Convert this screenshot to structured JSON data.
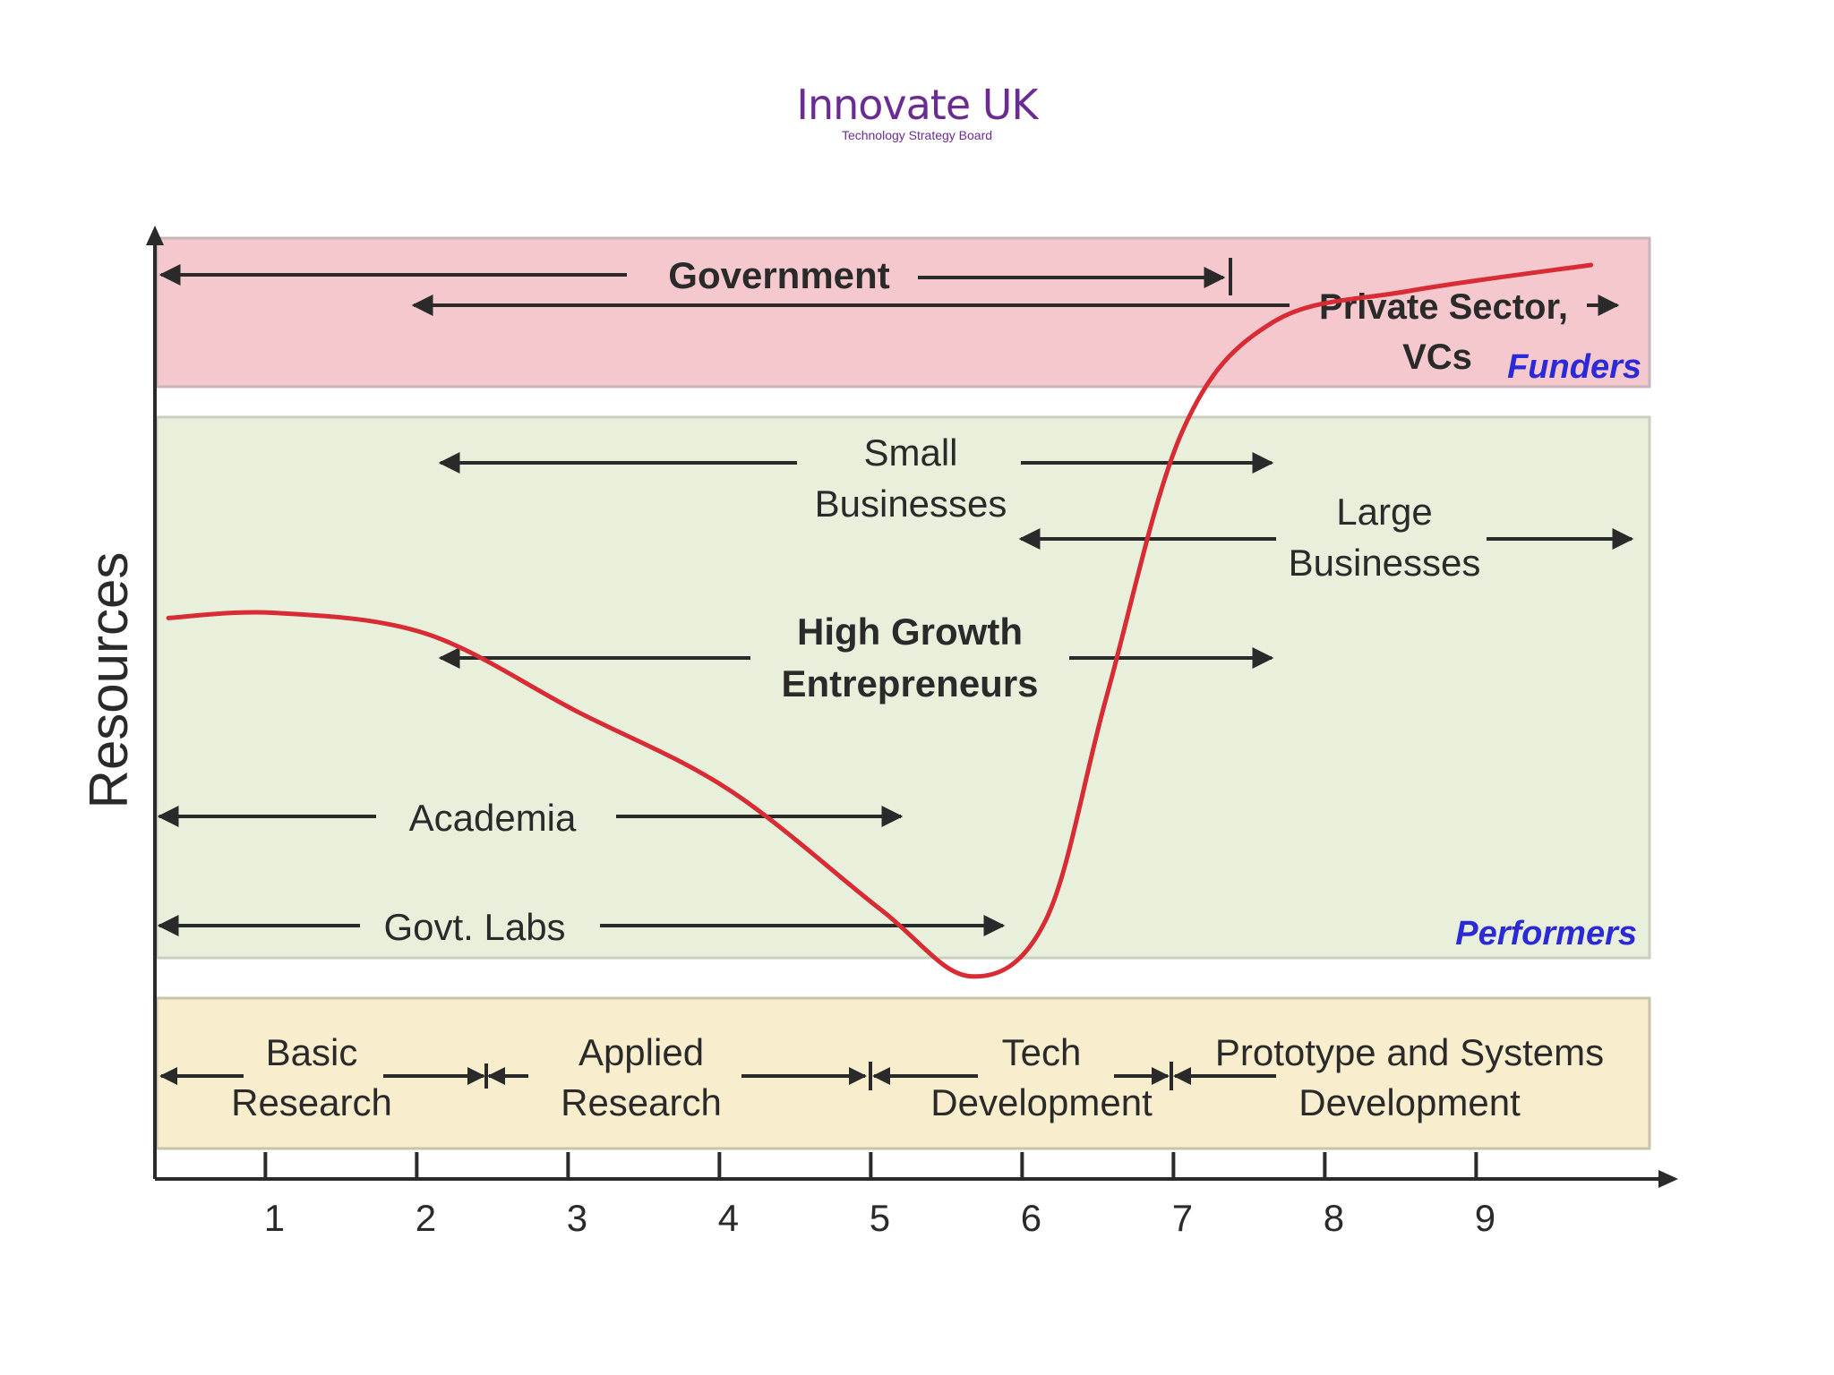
{
  "logo": {
    "name": "Innovate UK",
    "subtitle": "Technology Strategy Board"
  },
  "colors": {
    "funders_band": "#f4c8cd",
    "performers_band": "#e8f0dc",
    "stages_band": "#f8edcd",
    "curve": "#d92b33",
    "zone_label": "#2b2ad6",
    "arrow": "#2a2a2a"
  },
  "y_axis_label": "Resources",
  "x_ticks": [
    "1",
    "2",
    "3",
    "4",
    "5",
    "6",
    "7",
    "8",
    "9"
  ],
  "zones": {
    "funders": "Funders",
    "performers": "Performers"
  },
  "funders": {
    "government": "Government",
    "private_line1": "Private Sector,",
    "private_line2": "VCs"
  },
  "performers": {
    "small_line1": "Small",
    "small_line2": "Businesses",
    "large_line1": "Large",
    "large_line2": "Businesses",
    "growth_line1": "High Growth",
    "growth_line2": "Entrepreneurs",
    "academia": "Academia",
    "labs": "Govt. Labs"
  },
  "stages": {
    "basic_line1": "Basic",
    "basic_line2": "Research",
    "applied_line1": "Applied",
    "applied_line2": "Research",
    "tech_line1": "Tech",
    "tech_line2": "Development",
    "proto_line1": "Prototype and Systems",
    "proto_line2": "Development"
  },
  "curve_points": [
    [
      0.3,
      7.2
    ],
    [
      1.0,
      7.3
    ],
    [
      2.0,
      6.9
    ],
    [
      3.0,
      5.4
    ],
    [
      4.0,
      3.9
    ],
    [
      5.0,
      1.6
    ],
    [
      5.6,
      0.3
    ],
    [
      6.1,
      1.4
    ],
    [
      6.5,
      5.7
    ],
    [
      7.0,
      10.8
    ],
    [
      7.6,
      12.9
    ],
    [
      8.5,
      13.5
    ],
    [
      9.7,
      14.0
    ]
  ]
}
